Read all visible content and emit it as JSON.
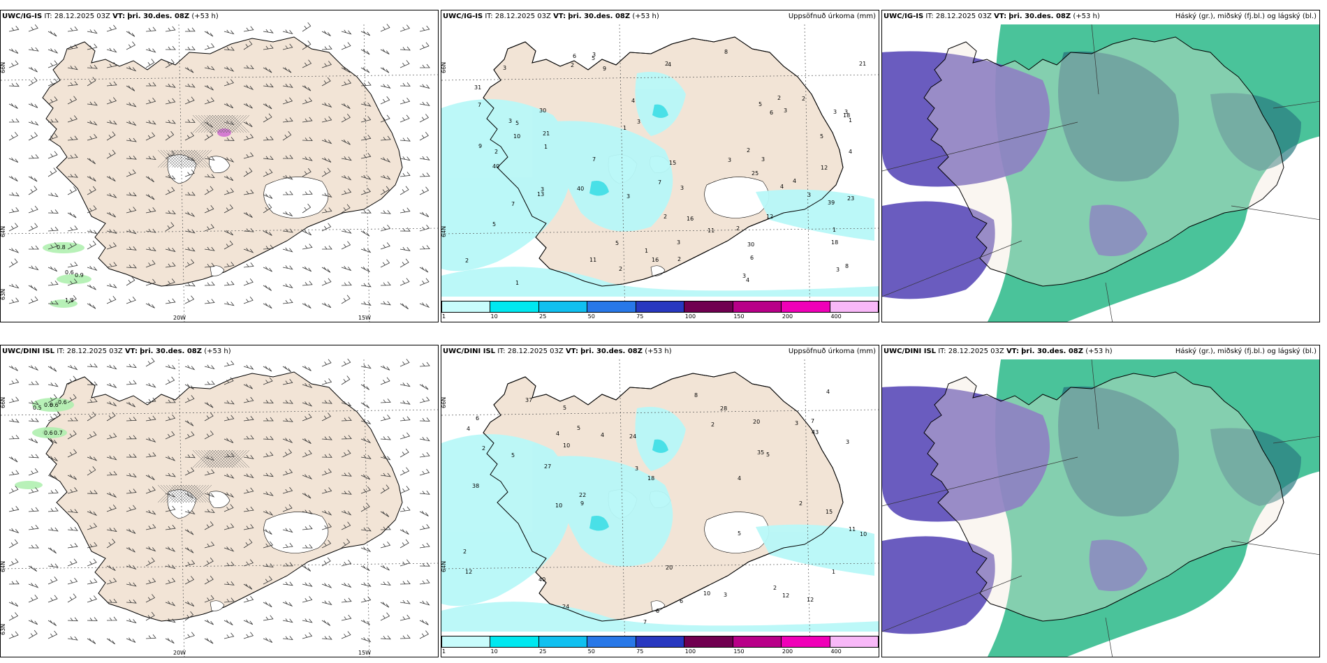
{
  "panels": [
    {
      "model": "UWC/IG-IS",
      "it_label": "IT:",
      "it": "28.12.2025 03Z",
      "vt_label": "VT:",
      "vt": "þri. 30.des. 08Z",
      "lead": "(+53 h)",
      "right_title": "",
      "type": "wind",
      "lon_labels": [
        "20W",
        "15W"
      ],
      "lat_labels": [
        "66N",
        "64N",
        "63N"
      ],
      "values": [
        "0.8",
        "0.6",
        "0.9",
        "1.3"
      ]
    },
    {
      "model": "UWC/IG-IS",
      "it_label": "IT:",
      "it": "28.12.2025 03Z",
      "vt_label": "VT:",
      "vt": "þri. 30.des. 08Z",
      "lead": "(+53 h)",
      "right_title": "Uppsöfnuð úrkoma (mm)",
      "type": "precip",
      "lat_labels": [
        "66N",
        "64N"
      ],
      "values": [
        "1",
        "3",
        "2",
        "5",
        "4",
        "3",
        "1",
        "3",
        "3",
        "16",
        "4",
        "2",
        "3",
        "4",
        "3",
        "10",
        "7",
        "9",
        "3",
        "2",
        "7",
        "15",
        "39",
        "40",
        "21",
        "23",
        "40",
        "11",
        "16",
        "13",
        "1",
        "7",
        "18",
        "30",
        "25",
        "30",
        "11",
        "8",
        "4",
        "3",
        "5",
        "2",
        "3",
        "1",
        "2",
        "4",
        "6",
        "7",
        "3",
        "31",
        "9",
        "18",
        "21",
        "5",
        "3",
        "2",
        "6",
        "12",
        "12",
        "1",
        "3",
        "2",
        "5",
        "2",
        "8",
        "1",
        "3",
        "2",
        "2",
        "5",
        "3",
        "3",
        "4",
        "6",
        "3",
        "5",
        "2"
      ]
    },
    {
      "model": "UWC/IG-IS",
      "it_label": "IT:",
      "it": "28.12.2025 03Z",
      "vt_label": "VT:",
      "vt": "þri. 30.des. 08Z",
      "lead": "(+53 h)",
      "right_title": "Háský (gr.), miðský (fj.bl.) og lágský (bl.)",
      "type": "cloud",
      "values": []
    },
    {
      "model": "UWC/DINI ISL",
      "it_label": "IT:",
      "it": "28.12.2025 03Z",
      "vt_label": "VT:",
      "vt": "þri. 30.des. 08Z",
      "lead": "(+53 h)",
      "right_title": "",
      "type": "wind",
      "lon_labels": [
        "20W",
        "15W"
      ],
      "lat_labels": [
        "66N",
        "64N",
        "63N"
      ],
      "values": [
        "0.5",
        "0.6",
        "0.6",
        "0.6",
        "0.6",
        "0.7"
      ]
    },
    {
      "model": "UWC/DINI ISL",
      "it_label": "IT:",
      "it": "28.12.2025 03Z",
      "vt_label": "VT:",
      "vt": "þri. 30.des. 08Z",
      "lead": "(+53 h)",
      "right_title": "Uppsöfnuð úrkoma (mm)",
      "type": "precip",
      "lat_labels": [
        "66N",
        "64N"
      ],
      "values": [
        "2",
        "10",
        "4",
        "6",
        "3",
        "7",
        "5",
        "9",
        "7",
        "10",
        "11",
        "5",
        "35",
        "40",
        "38",
        "24",
        "22",
        "24",
        "12",
        "10",
        "12",
        "15",
        "18",
        "20",
        "20",
        "27",
        "43",
        "28",
        "37",
        "10",
        "2",
        "3",
        "4",
        "5",
        "6",
        "5",
        "4",
        "2",
        "8",
        "12",
        "5",
        "4",
        "3",
        "2",
        "6",
        "3",
        "4",
        "2",
        "1"
      ]
    },
    {
      "model": "UWC/DINI ISL",
      "it_label": "IT:",
      "it": "28.12.2025 03Z",
      "vt_label": "VT:",
      "vt": "þri. 30.des. 08Z",
      "lead": "(+53 h)",
      "right_title": "Háský (gr.), miðský (fj.bl.) og lágský (bl.)",
      "type": "cloud",
      "values": []
    }
  ],
  "precip_legend": {
    "colors": [
      "#c8fcfc",
      "#00e8f0",
      "#10c0f0",
      "#2878e8",
      "#2838c0",
      "#700050",
      "#b80088",
      "#f000b8",
      "#f8b8f8"
    ],
    "ticks": [
      "1",
      "10",
      "25",
      "50",
      "75",
      "100",
      "150",
      "200",
      "400"
    ]
  },
  "colors": {
    "land": "#f2e4d6",
    "snow": "#ffffff",
    "ocean": "#ffffff",
    "high_cloud": "#2ab888",
    "mid_cloud": "#2a7a80",
    "low_cloud": "#5a4ab8",
    "precip_light": "#b8f8f8",
    "precip_mid": "#40e0e8"
  }
}
